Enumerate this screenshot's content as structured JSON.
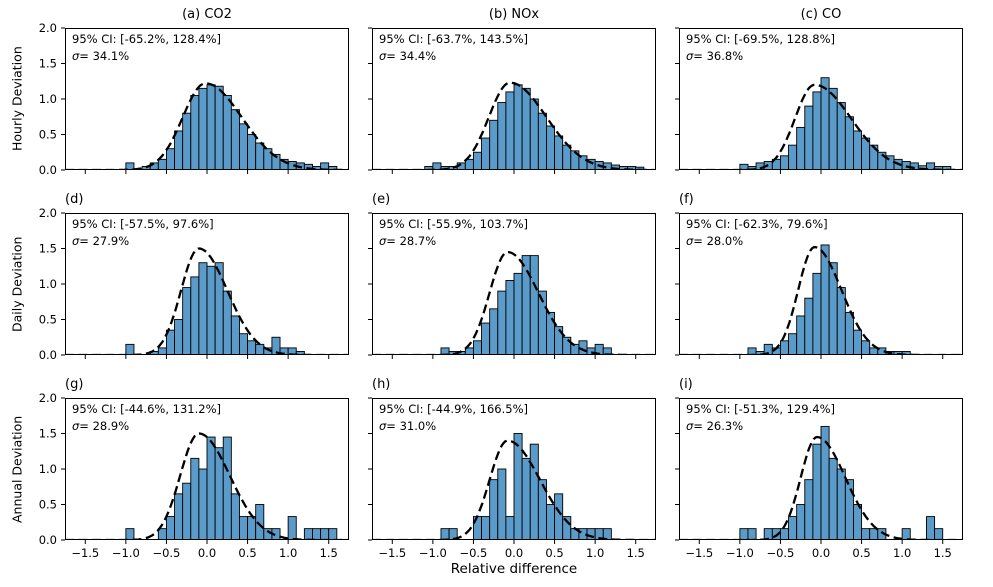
{
  "figure": {
    "xlabel": "Relative difference",
    "row_labels": [
      "Hourly Deviation",
      "Daily Deviation",
      "Annual Deviation"
    ],
    "x_tick_values": [
      -1.5,
      -1.0,
      -0.5,
      0.0,
      0.5,
      1.0,
      1.5
    ],
    "x_tick_labels": [
      "−1.5",
      "−1.0",
      "−0.5",
      "0.0",
      "0.5",
      "1.0",
      "1.5"
    ],
    "y_tick_values": [
      0.0,
      0.5,
      1.0,
      1.5,
      2.0
    ],
    "y_tick_labels": [
      "0.0",
      "0.5",
      "1.0",
      "1.5",
      "2.0"
    ]
  },
  "chart_data": {
    "type": "bar",
    "subtype": "histogram-grid-3x3-with-fitted-curve",
    "xlim": [
      -1.75,
      1.75
    ],
    "ylim": [
      0,
      2.0
    ],
    "grid": false,
    "bar_fill": "#5b9bc9",
    "bar_edge": "#000000",
    "curve_color": "#000000",
    "panels": [
      {
        "id": "a",
        "title": "(a) CO2",
        "ci": "95% CI: [-65.2%, 128.4%]",
        "sigma_symbol": "σ",
        "sigma_rest": "= 34.1%",
        "bin_start": -1.0,
        "bin_width": 0.1,
        "heights": [
          0.1,
          0,
          0.05,
          0.1,
          0.15,
          0.3,
          0.55,
          0.8,
          1.05,
          1.15,
          1.2,
          1.18,
          1.05,
          0.85,
          0.65,
          0.5,
          0.38,
          0.3,
          0.22,
          0.15,
          0.12,
          0.1,
          0.08,
          0.05,
          0.1,
          0.05
        ],
        "curve": {
          "peak_x": -0.02,
          "peak_y": 1.22,
          "sigma_left": 0.28,
          "sigma_right": 0.45
        }
      },
      {
        "id": "b",
        "title": "(b) NOx",
        "ci": "95% CI: [-63.7%, 143.5%]",
        "sigma_symbol": "σ",
        "sigma_rest": "= 34.4%",
        "bin_start": -1.1,
        "bin_width": 0.1,
        "heights": [
          0.05,
          0.1,
          0.05,
          0.05,
          0.1,
          0.15,
          0.25,
          0.45,
          0.7,
          0.95,
          1.1,
          1.2,
          1.15,
          1.0,
          0.8,
          0.62,
          0.48,
          0.35,
          0.27,
          0.2,
          0.15,
          0.12,
          0.1,
          0.07,
          0.05,
          0.05,
          0.04
        ],
        "curve": {
          "peak_x": -0.05,
          "peak_y": 1.23,
          "sigma_left": 0.26,
          "sigma_right": 0.45
        }
      },
      {
        "id": "c",
        "title": "(c) CO",
        "ci": "95% CI: [-69.5%, 128.8%]",
        "sigma_symbol": "σ",
        "sigma_rest": "= 36.8%",
        "bin_start": -1.0,
        "bin_width": 0.1,
        "heights": [
          0.08,
          0.05,
          0.1,
          0.12,
          0.15,
          0.2,
          0.35,
          0.6,
          0.9,
          1.1,
          1.3,
          1.15,
          0.95,
          0.75,
          0.55,
          0.45,
          0.35,
          0.25,
          0.2,
          0.15,
          0.12,
          0.1,
          0.06,
          0.1,
          0.05,
          0.05
        ],
        "curve": {
          "peak_x": -0.08,
          "peak_y": 1.2,
          "sigma_left": 0.24,
          "sigma_right": 0.45
        }
      },
      {
        "id": "d",
        "title": "(d)",
        "ci": "95% CI: [-57.5%, 97.6%]",
        "sigma_symbol": "σ",
        "sigma_rest": "= 27.9%",
        "bin_start": -1.0,
        "bin_width": 0.1,
        "heights": [
          0.15,
          0,
          0,
          0.05,
          0.1,
          0.35,
          0.5,
          0.95,
          1.1,
          1.3,
          1.25,
          1.3,
          0.9,
          0.55,
          0.3,
          0.2,
          0.15,
          0.1,
          0.25,
          0.1,
          0.1,
          0.05
        ],
        "curve": {
          "peak_x": -0.1,
          "peak_y": 1.5,
          "sigma_left": 0.22,
          "sigma_right": 0.35
        }
      },
      {
        "id": "e",
        "title": "(e)",
        "ci": "95% CI: [-55.9%, 103.7%]",
        "sigma_symbol": "σ",
        "sigma_rest": "= 28.7%",
        "bin_start": -0.9,
        "bin_width": 0.1,
        "heights": [
          0.1,
          0.05,
          0.05,
          0.1,
          0.2,
          0.45,
          0.65,
          0.9,
          1.05,
          1.15,
          1.4,
          1.4,
          0.9,
          0.6,
          0.4,
          0.25,
          0.15,
          0.2,
          0.1,
          0.15,
          0.1
        ],
        "curve": {
          "peak_x": -0.08,
          "peak_y": 1.45,
          "sigma_left": 0.22,
          "sigma_right": 0.38
        }
      },
      {
        "id": "f",
        "title": "(f)",
        "ci": "95% CI: [-62.3%, 79.6%]",
        "sigma_symbol": "σ",
        "sigma_rest": "= 28.0%",
        "bin_start": -0.9,
        "bin_width": 0.1,
        "heights": [
          0.1,
          0.05,
          0.15,
          0.1,
          0.2,
          0.3,
          0.55,
          0.8,
          1.15,
          1.55,
          1.3,
          0.95,
          0.6,
          0.35,
          0.2,
          0.1,
          0.1,
          0.05,
          0.05,
          0.05
        ],
        "curve": {
          "peak_x": -0.08,
          "peak_y": 1.52,
          "sigma_left": 0.2,
          "sigma_right": 0.33
        }
      },
      {
        "id": "g",
        "title": "(g)",
        "ci": "95% CI: [-44.6%, 131.2%]",
        "sigma_symbol": "σ",
        "sigma_rest": "= 28.9%",
        "bin_start": -1.0,
        "bin_width": 0.1,
        "heights": [
          0.16,
          0,
          0,
          0,
          0.16,
          0.33,
          0.65,
          0.8,
          1.15,
          1.0,
          1.45,
          1.3,
          1.45,
          0.65,
          0.33,
          0.33,
          0.5,
          0.16,
          0.16,
          0,
          0.33,
          0,
          0.16,
          0.16,
          0.16,
          0.16
        ],
        "curve": {
          "peak_x": -0.1,
          "peak_y": 1.5,
          "sigma_left": 0.23,
          "sigma_right": 0.38
        }
      },
      {
        "id": "h",
        "title": "(h)",
        "ci": "95% CI: [-44.9%, 166.5%]",
        "sigma_symbol": "σ",
        "sigma_rest": "= 31.0%",
        "bin_start": -0.9,
        "bin_width": 0.1,
        "heights": [
          0.16,
          0.16,
          0,
          0,
          0.33,
          0.33,
          0.85,
          1.0,
          0.33,
          1.5,
          1.15,
          1.35,
          0.85,
          0.5,
          0.65,
          0.33,
          0.16,
          0.16,
          0.16,
          0.16,
          0.16
        ],
        "curve": {
          "peak_x": -0.08,
          "peak_y": 1.4,
          "sigma_left": 0.22,
          "sigma_right": 0.4
        }
      },
      {
        "id": "i",
        "title": "(i)",
        "ci": "95% CI: [-51.3%, 129.4%]",
        "sigma_symbol": "σ",
        "sigma_rest": "= 26.3%",
        "bin_start": -1.0,
        "bin_width": 0.1,
        "heights": [
          0.16,
          0.16,
          0,
          0.16,
          0.16,
          0.16,
          0.33,
          0.5,
          0.85,
          1.35,
          1.6,
          1.15,
          1.0,
          0.85,
          0.5,
          0.16,
          0.16,
          0.16,
          0,
          0,
          0.16,
          0,
          0,
          0.33,
          0.16
        ],
        "curve": {
          "peak_x": -0.05,
          "peak_y": 1.45,
          "sigma_left": 0.2,
          "sigma_right": 0.35
        }
      }
    ]
  }
}
